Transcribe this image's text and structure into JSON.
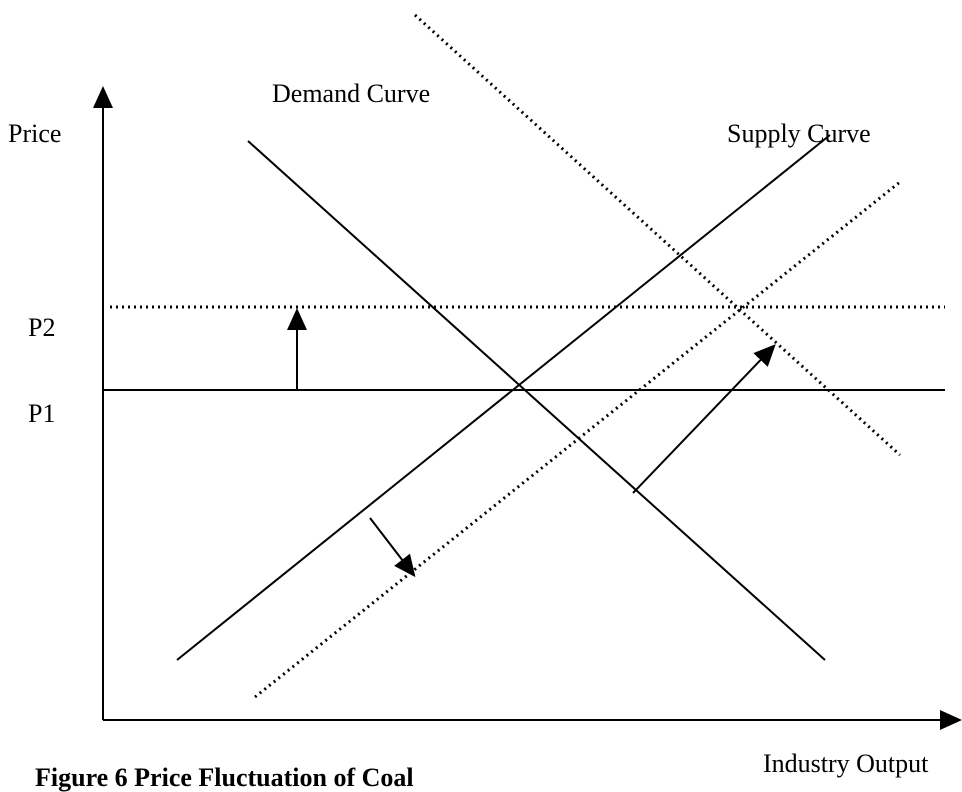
{
  "axes": {
    "y_label": "Price",
    "x_label": "Industry Output"
  },
  "curves": {
    "demand": "Demand Curve",
    "supply": "Supply Curve"
  },
  "price_levels": {
    "high": "P2",
    "low": "P1"
  },
  "caption": "Figure 6 Price Fluctuation of Coal"
}
